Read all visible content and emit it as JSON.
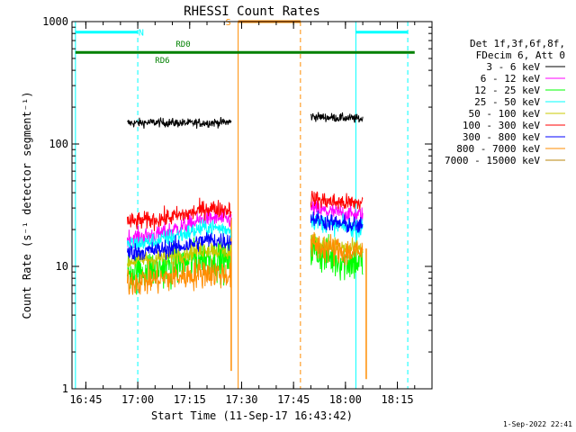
{
  "chart_data": {
    "type": "line",
    "title": "RHESSI Count Rates",
    "xlabel": "Start Time (11-Sep-17 16:43:42)",
    "ylabel": "Count Rate (s⁻¹ detector segment⁻¹)",
    "yscale": "log",
    "ylim": [
      1,
      1000
    ],
    "xlim": [
      "16:41",
      "18:25"
    ],
    "x_ticks": [
      "16:45",
      "17:00",
      "17:15",
      "17:30",
      "17:45",
      "18:00",
      "18:15"
    ],
    "y_ticks": [
      "1",
      "10",
      "100",
      "1000"
    ],
    "legend_header": [
      "Det 1f,3f,6f,8f,",
      "FDecim 6, Att 0"
    ],
    "series": [
      {
        "name": "3 - 6 keV",
        "color": "#000000",
        "segments": [
          {
            "x": [
              "16:57",
              "17:05",
              "17:15",
              "17:25",
              "17:27"
            ],
            "y": [
              148,
              150,
              148,
              150,
              152
            ]
          },
          {
            "x": [
              "17:50",
              "17:55",
              "18:00",
              "18:05"
            ],
            "y": [
              168,
              165,
              163,
              160
            ]
          }
        ]
      },
      {
        "name": "6 - 12 keV",
        "color": "#ff00ff",
        "segments": [
          {
            "x": [
              "16:57",
              "17:05",
              "17:15",
              "17:20",
              "17:27"
            ],
            "y": [
              17,
              18,
              22,
              25,
              24
            ]
          },
          {
            "x": [
              "17:50",
              "17:55",
              "18:00",
              "18:05"
            ],
            "y": [
              30,
              28,
              27,
              26
            ]
          }
        ]
      },
      {
        "name": "12 - 25 keV",
        "color": "#00ff00",
        "segments": [
          {
            "x": [
              "16:57",
              "17:05",
              "17:15",
              "17:20",
              "17:27"
            ],
            "y": [
              9,
              9.5,
              11,
              12,
              11
            ]
          },
          {
            "x": [
              "17:50",
              "17:55",
              "18:00",
              "18:05"
            ],
            "y": [
              14,
              12,
              11,
              11
            ]
          }
        ]
      },
      {
        "name": "25 - 50 keV",
        "color": "#00ffff",
        "segments": [
          {
            "x": [
              "16:57",
              "17:05",
              "17:15",
              "17:20",
              "17:27"
            ],
            "y": [
              15,
              16,
              19,
              21,
              20
            ]
          },
          {
            "x": [
              "17:50",
              "17:55",
              "18:00",
              "18:05"
            ],
            "y": [
              24,
              22,
              21,
              20
            ]
          }
        ]
      },
      {
        "name": "50 - 100 keV",
        "color": "#c8c800",
        "segments": [
          {
            "x": [
              "16:57",
              "17:05",
              "17:15",
              "17:20",
              "17:27"
            ],
            "y": [
              11,
              11.5,
              13,
              14,
              13
            ]
          },
          {
            "x": [
              "17:50",
              "17:55",
              "18:00",
              "18:05"
            ],
            "y": [
              16,
              15,
              14,
              14
            ]
          }
        ]
      },
      {
        "name": "100 - 300 keV",
        "color": "#ff0000",
        "segments": [
          {
            "x": [
              "16:57",
              "17:05",
              "17:15",
              "17:20",
              "17:27"
            ],
            "y": [
              23,
              24,
              27,
              30,
              29
            ]
          },
          {
            "x": [
              "17:50",
              "17:55",
              "18:00",
              "18:05"
            ],
            "y": [
              36,
              34,
              33,
              33
            ]
          }
        ]
      },
      {
        "name": "300 - 800 keV",
        "color": "#0000ff",
        "segments": [
          {
            "x": [
              "16:57",
              "17:05",
              "17:15",
              "17:20",
              "17:27"
            ],
            "y": [
              13,
              13.5,
              15,
              16.5,
              16
            ]
          },
          {
            "x": [
              "17:50",
              "17:55",
              "18:00",
              "18:05"
            ],
            "y": [
              25,
              23,
              22,
              21
            ]
          }
        ]
      },
      {
        "name": "800 - 7000 keV",
        "color": "#ff8c00",
        "segments": [
          {
            "x": [
              "16:57",
              "17:05",
              "17:15",
              "17:20",
              "17:27"
            ],
            "y": [
              7.5,
              7.8,
              8.5,
              9,
              8.5
            ]
          },
          {
            "x": [
              "17:50",
              "17:55",
              "18:00",
              "18:05"
            ],
            "y": [
              15,
              14,
              13,
              13
            ]
          }
        ]
      },
      {
        "name": "7000 - 15000 keV",
        "color": "#b8860b",
        "segments": []
      }
    ],
    "annotations": {
      "vlines": [
        {
          "x": "16:42",
          "color": "#00ffff",
          "style": "solid"
        },
        {
          "x": "17:00",
          "color": "#00ffff",
          "style": "dashed"
        },
        {
          "x": "17:29",
          "color": "#ff8c00",
          "style": "solid"
        },
        {
          "x": "17:47",
          "color": "#ff8c00",
          "style": "dashed"
        },
        {
          "x": "18:03",
          "color": "#00ffff",
          "style": "solid"
        },
        {
          "x": "18:18",
          "color": "#00ffff",
          "style": "dashed"
        }
      ],
      "spikes": [
        {
          "x": "17:27",
          "y_from": 25,
          "y_to": 1.4,
          "color": "#ff8c00"
        },
        {
          "x": "18:06",
          "y_from": 14,
          "y_to": 1.2,
          "color": "#ff8c00"
        }
      ],
      "hbars": [
        {
          "x1": "16:42",
          "x2": "17:00",
          "y": 820,
          "color": "#00ffff",
          "label": "N",
          "label_color": "#00ffff"
        },
        {
          "x1": "18:03",
          "x2": "18:18",
          "y": 820,
          "color": "#00ffff",
          "label": "",
          "label_color": "#00ffff"
        },
        {
          "x1": "17:29",
          "x2": "17:47",
          "y": 1000,
          "color": "#ff8c00",
          "label": "S",
          "label_color": "#ff8c00"
        },
        {
          "x1": "16:42",
          "x2": "18:20",
          "y": 560,
          "color": "#008000",
          "label": "",
          "label_color": "#008000"
        }
      ],
      "texts": [
        {
          "text": "RD0",
          "x": "17:11",
          "y": 620,
          "color": "#008000"
        },
        {
          "text": "RD6",
          "x": "17:05",
          "y": 460,
          "color": "#008000"
        }
      ]
    }
  },
  "footer_timestamp": "1-Sep-2022 22:41"
}
